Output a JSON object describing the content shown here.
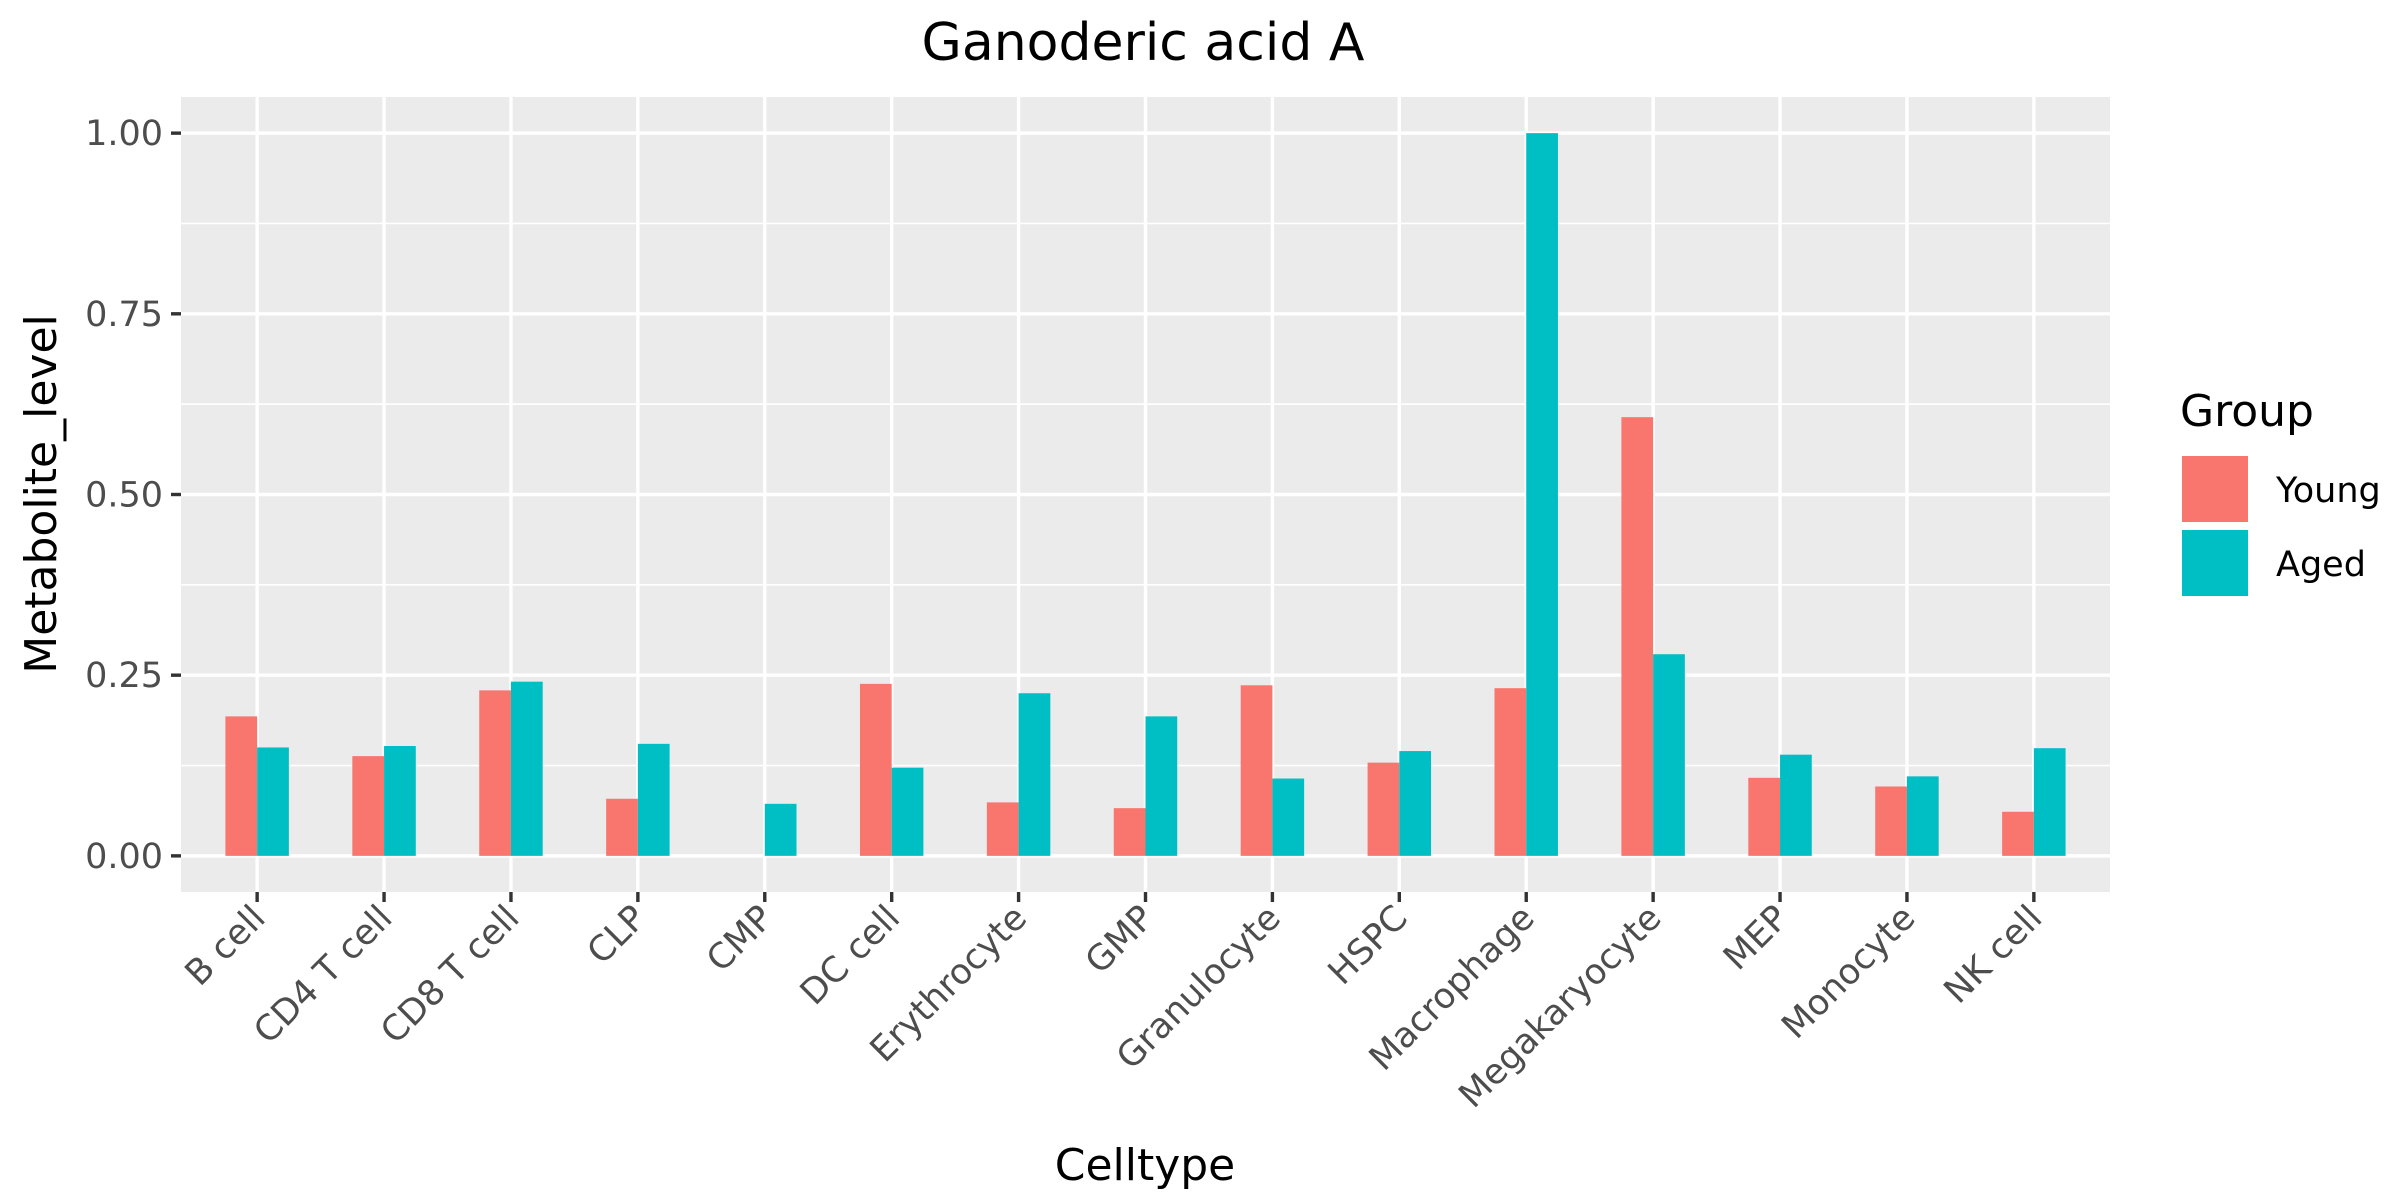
{
  "chart_data": {
    "type": "bar",
    "title": "Ganoderic acid A",
    "xlabel": "Celltype",
    "ylabel": "Metabolite_level",
    "ylim": [
      -0.05,
      1.05
    ],
    "yticks": [
      0.0,
      0.25,
      0.5,
      0.75,
      1.0
    ],
    "ytick_labels": [
      "0.00",
      "0.25",
      "0.50",
      "0.75",
      "1.00"
    ],
    "grid": true,
    "legend": {
      "title": "Group",
      "position": "right"
    },
    "categories": [
      "B cell",
      "CD4 T cell",
      "CD8 T cell",
      "CLP",
      "CMP",
      "DC cell",
      "Erythrocyte",
      "GMP",
      "Granulocyte",
      "HSPC",
      "Macrophage",
      "Megakaryocyte",
      "MEP",
      "Monocyte",
      "NK cell"
    ],
    "series": [
      {
        "name": "Young",
        "color": "#f8766d",
        "values": [
          0.193,
          0.138,
          0.229,
          0.079,
          null,
          0.238,
          0.074,
          0.066,
          0.236,
          0.129,
          0.232,
          0.607,
          0.108,
          0.096,
          0.061
        ]
      },
      {
        "name": "Aged",
        "color": "#00bfc4",
        "values": [
          0.15,
          0.152,
          0.241,
          0.155,
          0.072,
          0.122,
          0.225,
          0.193,
          0.107,
          0.145,
          1.0,
          0.279,
          0.14,
          0.11,
          0.149
        ]
      }
    ]
  }
}
